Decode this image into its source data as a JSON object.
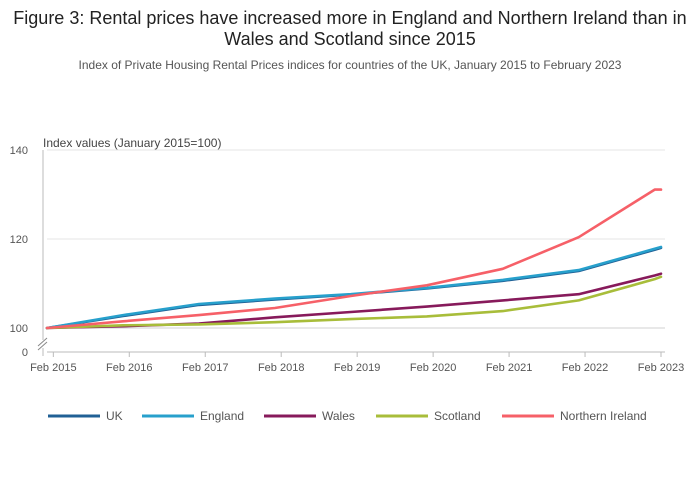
{
  "title": "Figure 3: Rental prices have increased more in England and Northern Ireland than in Wales and Scotland since 2015",
  "subtitle": "Index of Private Housing Rental Prices indices for countries of the UK, January 2015 to February 2023",
  "chart_data": {
    "type": "line",
    "ylabel": "Index values (January 2015=100)",
    "xlabel": "",
    "y_ticks": [
      "0",
      "100",
      "120",
      "140"
    ],
    "y_axis_break": true,
    "ylim": [
      100,
      140
    ],
    "x_ticks": [
      "Feb 2015",
      "Feb 2016",
      "Feb 2017",
      "Feb 2018",
      "Feb 2019",
      "Feb 2020",
      "Feb 2021",
      "Feb 2022",
      "Feb 2023"
    ],
    "grid": "horizontal",
    "legend_position": "bottom",
    "x": [
      "Jan 2015",
      "Jan 2016",
      "Jan 2017",
      "Jan 2018",
      "Jan 2019",
      "Jan 2020",
      "Jan 2021",
      "Jan 2022",
      "Jan 2023",
      "Feb 2023"
    ],
    "series": [
      {
        "name": "UK",
        "color": "#206095",
        "values": [
          100.0,
          102.7,
          105.2,
          106.4,
          107.5,
          108.9,
          110.6,
          112.8,
          117.6,
          118.0
        ]
      },
      {
        "name": "England",
        "color": "#27a0cc",
        "values": [
          100.0,
          102.9,
          105.4,
          106.6,
          107.6,
          109.0,
          110.8,
          113.0,
          117.8,
          118.2
        ]
      },
      {
        "name": "Wales",
        "color": "#871a5b",
        "values": [
          100.0,
          100.4,
          101.0,
          102.4,
          103.6,
          104.8,
          106.2,
          107.6,
          111.8,
          112.2
        ]
      },
      {
        "name": "Scotland",
        "color": "#a8bd3a",
        "values": [
          100.0,
          100.6,
          100.8,
          101.3,
          102.0,
          102.6,
          103.8,
          106.2,
          111.0,
          111.5
        ]
      },
      {
        "name": "Northern Ireland",
        "color": "#f66068",
        "values": [
          100.0,
          101.5,
          102.9,
          104.5,
          107.2,
          109.6,
          113.3,
          120.4,
          131.1,
          131.1
        ]
      }
    ]
  }
}
